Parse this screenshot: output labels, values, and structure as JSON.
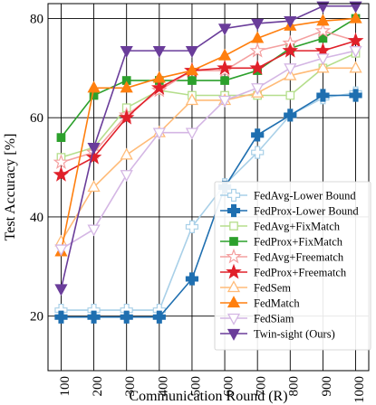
{
  "chart_data": {
    "type": "line",
    "xlabel": "Communication Round (R)",
    "ylabel": "Test Accuracy [%]",
    "x": [
      100,
      200,
      300,
      400,
      500,
      600,
      700,
      800,
      900,
      1000
    ],
    "xlim": [
      60,
      1040
    ],
    "ylim": [
      9,
      83
    ],
    "yticks": [
      20,
      40,
      60,
      80
    ],
    "grid": true,
    "legend_placement": "bottom-right",
    "series": [
      {
        "name": "FedAvg-Lower Bound",
        "color": "#a9d0e8",
        "marker": "plus-open",
        "values": [
          21.2,
          21.2,
          21.2,
          21.2,
          38,
          46.5,
          53,
          60.5,
          64,
          65
        ]
      },
      {
        "name": "FedProx-Lower Bound",
        "color": "#1f6fb0",
        "marker": "plus",
        "values": [
          19.8,
          19.8,
          19.8,
          19.8,
          27.5,
          46,
          56.5,
          60.5,
          64.5,
          64.5
        ]
      },
      {
        "name": "FedAvg+FixMatch",
        "color": "#b5de8c",
        "marker": "square-open",
        "values": [
          52,
          54,
          62,
          65.5,
          64.5,
          64.5,
          64.5,
          64.5,
          70,
          73
        ]
      },
      {
        "name": "FedProx+FixMatch",
        "color": "#2ca02c",
        "marker": "square",
        "values": [
          56,
          64.5,
          67.5,
          67.5,
          67.5,
          67.5,
          69.5,
          74,
          76,
          80
        ]
      },
      {
        "name": "FedAvg+Freematch",
        "color": "#f4a0a0",
        "marker": "star-open",
        "values": [
          51,
          53,
          60.5,
          65.5,
          69.5,
          69.5,
          73.5,
          75,
          77.5,
          75.5
        ]
      },
      {
        "name": "FedProx+Freematch",
        "color": "#e0202a",
        "marker": "star",
        "values": [
          48.5,
          52,
          60,
          66,
          69.5,
          70,
          70,
          73.5,
          73.5,
          75.5
        ]
      },
      {
        "name": "FedSem",
        "color": "#ffbb78",
        "marker": "triangle-open",
        "values": [
          35,
          46,
          52.5,
          57,
          63.5,
          63.5,
          65,
          68.5,
          70,
          70
        ]
      },
      {
        "name": "FedMatch",
        "color": "#ff7f0e",
        "marker": "triangle",
        "values": [
          33,
          66,
          66,
          68,
          69.5,
          72.5,
          76,
          78.5,
          79.5,
          80
        ]
      },
      {
        "name": "FedSiam",
        "color": "#d4b6e4",
        "marker": "tri-down-open",
        "values": [
          33.5,
          37.5,
          48.5,
          57,
          57,
          63.5,
          66,
          70,
          72,
          73.5
        ]
      },
      {
        "name": "Twin-sight (Ours)",
        "color": "#6a3d9a",
        "marker": "tri-down",
        "values": [
          25.5,
          54,
          73.5,
          73.5,
          73.5,
          78,
          79,
          79.5,
          82.5,
          82.5
        ]
      }
    ]
  }
}
